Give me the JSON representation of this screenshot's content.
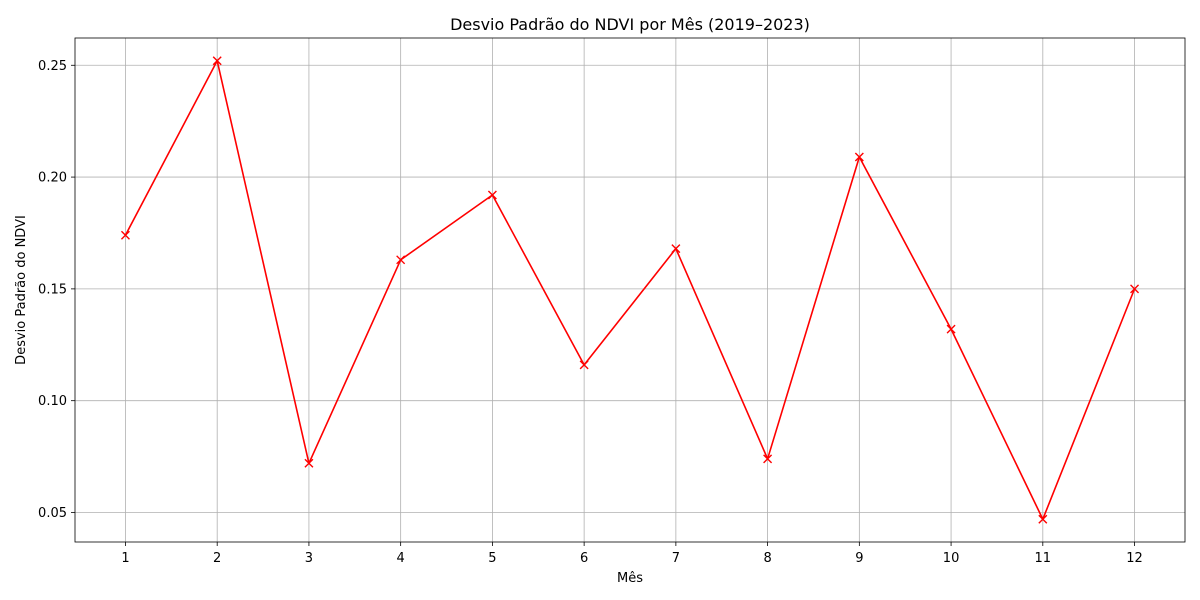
{
  "chart_data": {
    "type": "line",
    "title": "Desvio Padrão do NDVI por Mês (2019–2023)",
    "xlabel": "Mês",
    "ylabel": "Desvio Padrão do NDVI",
    "x": [
      1,
      2,
      3,
      4,
      5,
      6,
      7,
      8,
      9,
      10,
      11,
      12
    ],
    "x_tick_labels": [
      "1",
      "2",
      "3",
      "4",
      "5",
      "6",
      "7",
      "8",
      "9",
      "10",
      "11",
      "12"
    ],
    "series": [
      {
        "values": [
          0.174,
          0.252,
          0.072,
          0.163,
          0.192,
          0.116,
          0.168,
          0.074,
          0.209,
          0.132,
          0.047,
          0.15
        ],
        "color": "#ff0000",
        "marker": "x"
      }
    ],
    "y_ticks": [
      0.05,
      0.1,
      0.15,
      0.2,
      0.25
    ],
    "y_tick_labels": [
      "0.05",
      "0.10",
      "0.15",
      "0.20",
      "0.25"
    ],
    "xlim": [
      0.45,
      12.55
    ],
    "ylim": [
      0.0368,
      0.2622
    ],
    "grid": true
  }
}
